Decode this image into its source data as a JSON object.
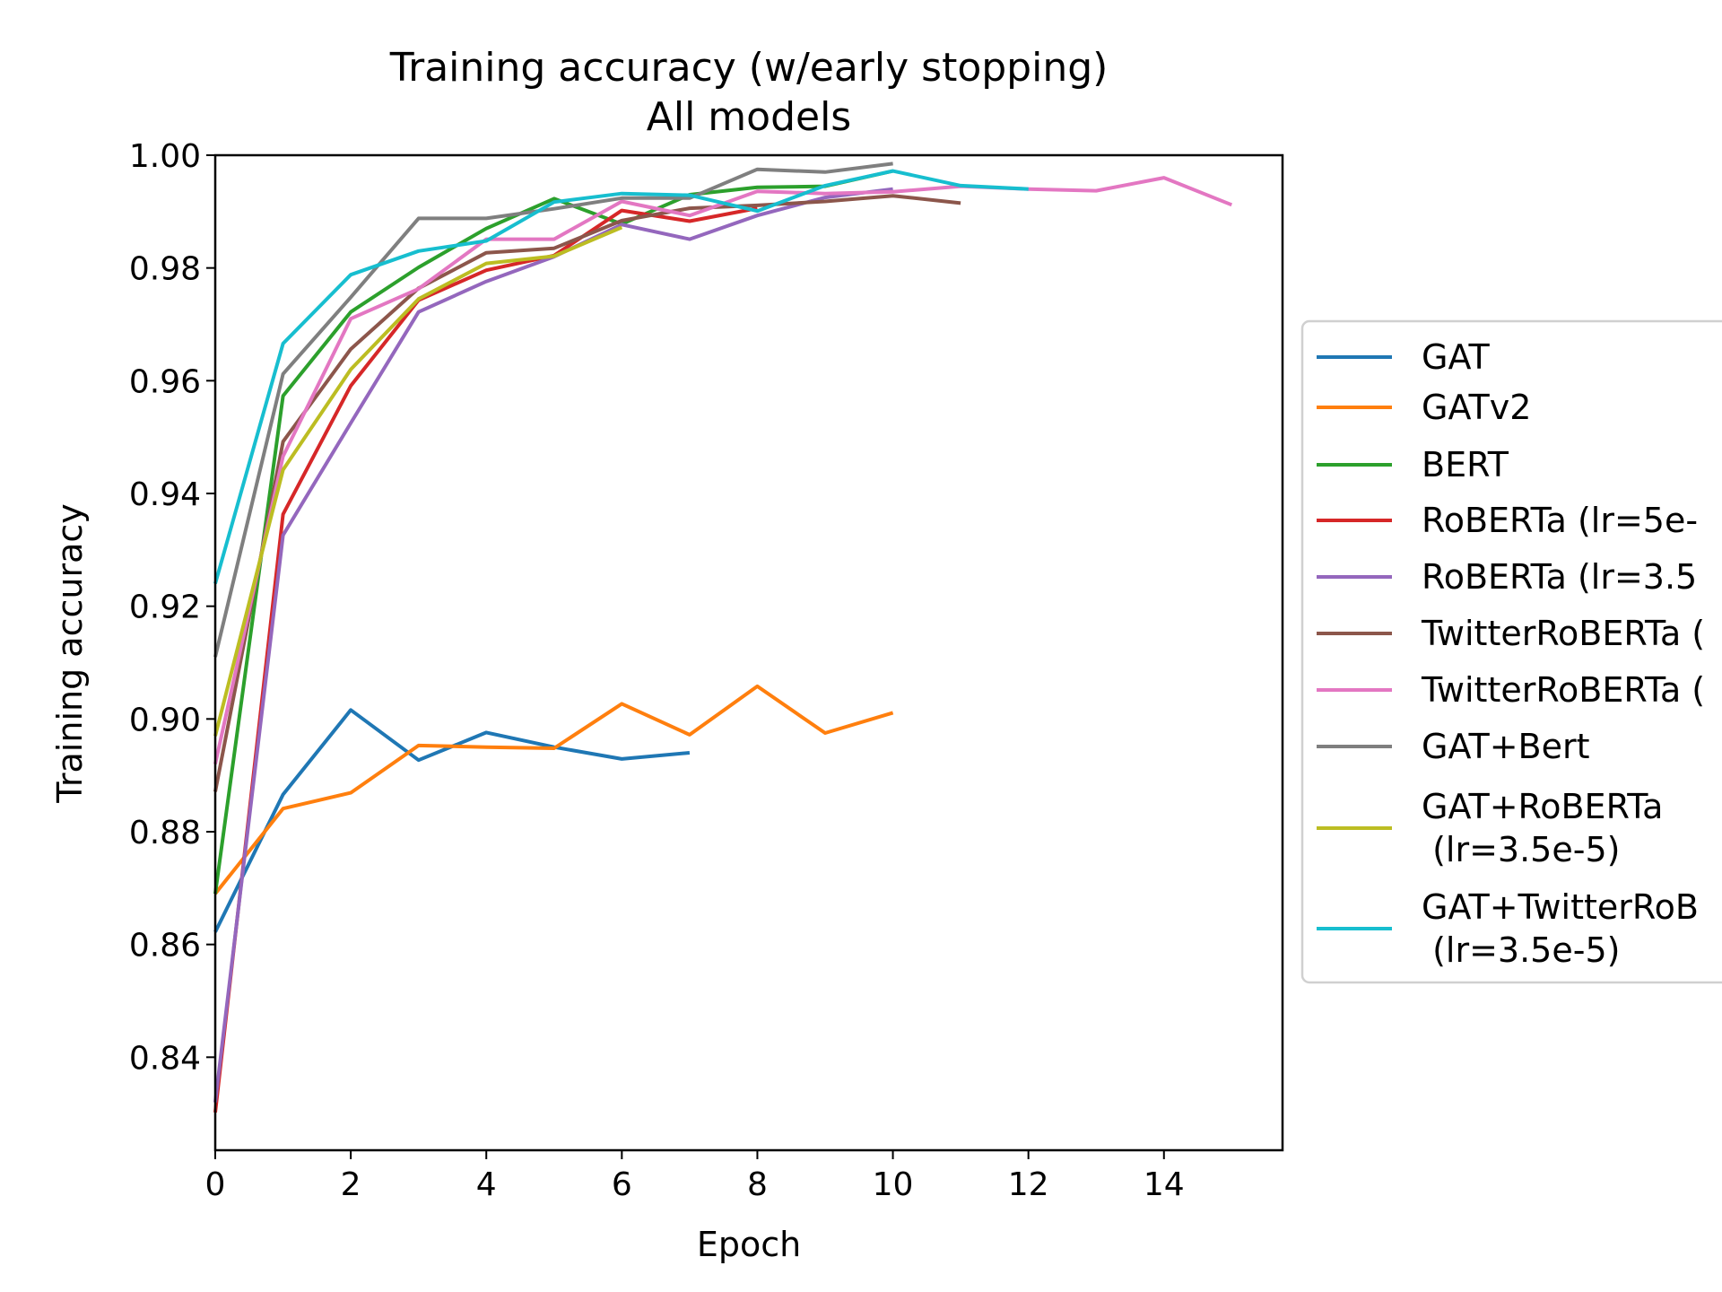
{
  "chart_data": {
    "type": "line",
    "title": "Training accuracy (w/early stopping)",
    "subtitle": "All models",
    "xlabel": "Epoch",
    "ylabel": "Training accuracy",
    "xlim": [
      0,
      15.75
    ],
    "ylim": [
      0.8235,
      1.0
    ],
    "xticks": [
      0,
      2,
      4,
      6,
      8,
      10,
      12,
      14
    ],
    "xtick_labels": [
      "0",
      "2",
      "4",
      "6",
      "8",
      "10",
      "12",
      "14"
    ],
    "yticks": [
      0.84,
      0.86,
      0.88,
      0.9,
      0.92,
      0.94,
      0.96,
      0.98,
      1.0
    ],
    "ytick_labels": [
      "0.84",
      "0.86",
      "0.88",
      "0.90",
      "0.92",
      "0.94",
      "0.96",
      "0.98",
      "1.00"
    ],
    "grid": false,
    "legend_position": "right, outside plot",
    "series": [
      {
        "name": "GAT",
        "color": "#1f77b4",
        "x": [
          0,
          1,
          2,
          3,
          4,
          5,
          6,
          7
        ],
        "values": [
          0.8622,
          0.8866,
          0.9016,
          0.8927,
          0.8976,
          0.895,
          0.8929,
          0.894
        ]
      },
      {
        "name": "GATv2",
        "color": "#ff7f0e",
        "x": [
          0,
          1,
          2,
          3,
          4,
          5,
          6,
          7,
          8,
          9,
          10
        ],
        "values": [
          0.869,
          0.8841,
          0.8869,
          0.8953,
          0.895,
          0.8948,
          0.9027,
          0.8972,
          0.9058,
          0.8975,
          0.9011
        ]
      },
      {
        "name": "BERT",
        "color": "#2ca02c",
        "x": [
          0,
          1,
          2,
          3,
          4,
          5,
          6,
          7,
          8,
          9,
          10
        ],
        "values": [
          0.869,
          0.9573,
          0.9722,
          0.9801,
          0.987,
          0.9923,
          0.9878,
          0.993,
          0.9943,
          0.9945,
          0.9972
        ]
      },
      {
        "name": "RoBERTa (lr=5e-",
        "color": "#d62728",
        "x": [
          0,
          1,
          2,
          3,
          4,
          5,
          6,
          7,
          8
        ],
        "values": [
          0.8302,
          0.9363,
          0.9591,
          0.9743,
          0.9796,
          0.9822,
          0.9902,
          0.9883,
          0.9906
        ]
      },
      {
        "name": "RoBERTa (lr=3.5",
        "color": "#9467bd",
        "x": [
          0,
          1,
          2,
          3,
          4,
          5,
          6,
          7,
          8,
          9,
          10
        ],
        "values": [
          0.832,
          0.9326,
          0.9525,
          0.9722,
          0.9776,
          0.982,
          0.9877,
          0.9851,
          0.9893,
          0.9925,
          0.994
        ]
      },
      {
        "name": "TwitterRoBERTa (",
        "color": "#8c564b",
        "x": [
          0,
          1,
          2,
          3,
          4,
          5,
          6,
          7,
          8,
          9,
          10,
          11
        ],
        "values": [
          0.8871,
          0.9492,
          0.9656,
          0.9764,
          0.9827,
          0.9835,
          0.9884,
          0.9906,
          0.9911,
          0.9918,
          0.9928,
          0.9915
        ]
      },
      {
        "name": "TwitterRoBERTa (",
        "color": "#e377c2",
        "x": [
          0,
          1,
          2,
          3,
          4,
          5,
          6,
          7,
          8,
          9,
          10,
          11,
          12,
          13,
          14,
          15
        ],
        "values": [
          0.892,
          0.9466,
          0.971,
          0.9763,
          0.9851,
          0.9851,
          0.9918,
          0.9893,
          0.9936,
          0.9932,
          0.9935,
          0.9945,
          0.994,
          0.9937,
          0.996,
          0.9912
        ]
      },
      {
        "name": "GAT+Bert",
        "color": "#7f7f7f",
        "x": [
          0,
          1,
          2,
          3,
          4,
          5,
          6,
          7,
          8,
          9,
          10
        ],
        "values": [
          0.911,
          0.9612,
          0.9748,
          0.9888,
          0.9888,
          0.9905,
          0.9924,
          0.9924,
          0.9975,
          0.997,
          0.9985
        ]
      },
      {
        "name": "GAT+RoBERTa\n (lr=3.5e-5)",
        "color": "#bcbd22",
        "x": [
          0,
          1,
          2,
          3,
          4,
          5,
          6
        ],
        "values": [
          0.897,
          0.9442,
          0.962,
          0.9745,
          0.9808,
          0.9821,
          0.9872
        ]
      },
      {
        "name": "GAT+TwitterRoB\n (lr=3.5e-5)",
        "color": "#17becf",
        "x": [
          0,
          1,
          2,
          3,
          4,
          5,
          6,
          7,
          8,
          9,
          10,
          11,
          12
        ],
        "values": [
          0.924,
          0.9666,
          0.9788,
          0.983,
          0.9848,
          0.9917,
          0.9932,
          0.9929,
          0.9901,
          0.9946,
          0.9972,
          0.9946,
          0.994
        ]
      }
    ]
  }
}
